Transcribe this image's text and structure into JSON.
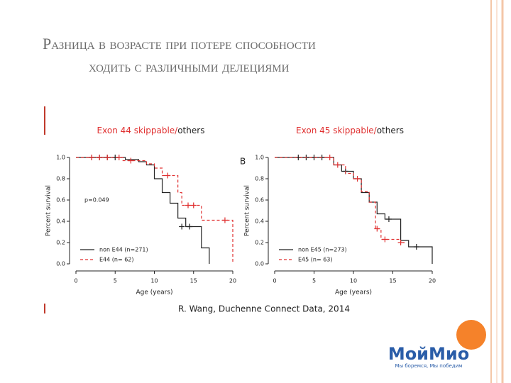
{
  "slide": {
    "title_lines": [
      "Разница в возрасте при потере способности",
      "ходить с различными делециями"
    ],
    "citation": "R. Wang, Duchenne Connect Data, 2014",
    "logo": "МойМио",
    "slogan": "Мы боремся, Мы победим"
  },
  "chart_data": [
    {
      "type": "step",
      "title": [
        "Exon 44 skippable/",
        "others"
      ],
      "xlabel": "Age (years)",
      "ylabel": "Percent survival",
      "annotation": "p=0.049",
      "xlim": [
        0,
        20
      ],
      "xticks": [
        0,
        5,
        10,
        15,
        20
      ],
      "ylim": [
        0,
        1
      ],
      "yticks": [
        {
          "value": 0,
          "label": "0.0"
        },
        0.2,
        0.4,
        0.6,
        0.8,
        {
          "value": 1,
          "label": "1.0"
        }
      ],
      "series": [
        {
          "name": "non E44 (n=271)",
          "color": "#222222",
          "dash": false,
          "x": [
            0,
            6.3,
            8,
            9,
            10,
            11,
            12,
            13,
            14,
            16,
            17
          ],
          "values": [
            1,
            0.98,
            0.96,
            0.93,
            0.8,
            0.67,
            0.57,
            0.43,
            0.35,
            0.15,
            0
          ],
          "censors": {
            "x": [
              2,
              3,
              4,
              5,
              13.5,
              14.5
            ],
            "values": [
              1,
              1,
              1,
              1,
              0.35,
              0.35
            ]
          }
        },
        {
          "name": "E44 (n= 62)",
          "color": "#e03030",
          "dash": true,
          "x": [
            0,
            6,
            9,
            10,
            11,
            13,
            13.5,
            16,
            20
          ],
          "values": [
            1,
            0.97,
            0.94,
            0.9,
            0.83,
            0.67,
            0.55,
            0.41,
            0
          ],
          "censors": {
            "x": [
              2,
              3,
              4,
              5.5,
              7,
              11.7,
              14.3,
              15,
              19
            ],
            "values": [
              1,
              1,
              1,
              1,
              0.97,
              0.83,
              0.55,
              0.55,
              0.41
            ]
          }
        }
      ]
    },
    {
      "type": "step",
      "title": [
        "Exon 45 skippable/",
        "others"
      ],
      "xlabel": "Age (years)",
      "ylabel": "Percent survival",
      "panel_label": "B",
      "xlim": [
        0,
        20
      ],
      "xticks": [
        0,
        5,
        10,
        15,
        20
      ],
      "ylim": [
        0,
        1
      ],
      "yticks": [
        {
          "value": 0,
          "label": "0.0"
        },
        0.2,
        0.4,
        0.6,
        0.8,
        {
          "value": 1,
          "label": "1.0"
        }
      ],
      "series": [
        {
          "name": "non E45 (n=273)",
          "color": "#222222",
          "dash": false,
          "x": [
            0,
            7.5,
            8.5,
            10,
            11,
            12,
            13,
            14,
            16,
            17,
            20
          ],
          "values": [
            1,
            0.93,
            0.87,
            0.8,
            0.67,
            0.58,
            0.47,
            0.42,
            0.22,
            0.16,
            0
          ],
          "censors": {
            "x": [
              3,
              4,
              5,
              6,
              9,
              14.5,
              18
            ],
            "values": [
              1,
              1,
              1,
              1,
              0.87,
              0.42,
              0.16
            ]
          }
        },
        {
          "name": "E45 (n= 63)",
          "color": "#e03030",
          "dash": true,
          "x": [
            0,
            7.5,
            9,
            10,
            11,
            12,
            12.8,
            13.5,
            16,
            16.5
          ],
          "values": [
            1,
            0.93,
            0.85,
            0.8,
            0.68,
            0.58,
            0.33,
            0.23,
            0.2,
            0.2
          ],
          "censors": {
            "x": [
              7,
              8,
              10.5,
              13,
              14,
              16
            ],
            "values": [
              1,
              0.93,
              0.8,
              0.33,
              0.23,
              0.2
            ]
          }
        }
      ]
    }
  ]
}
